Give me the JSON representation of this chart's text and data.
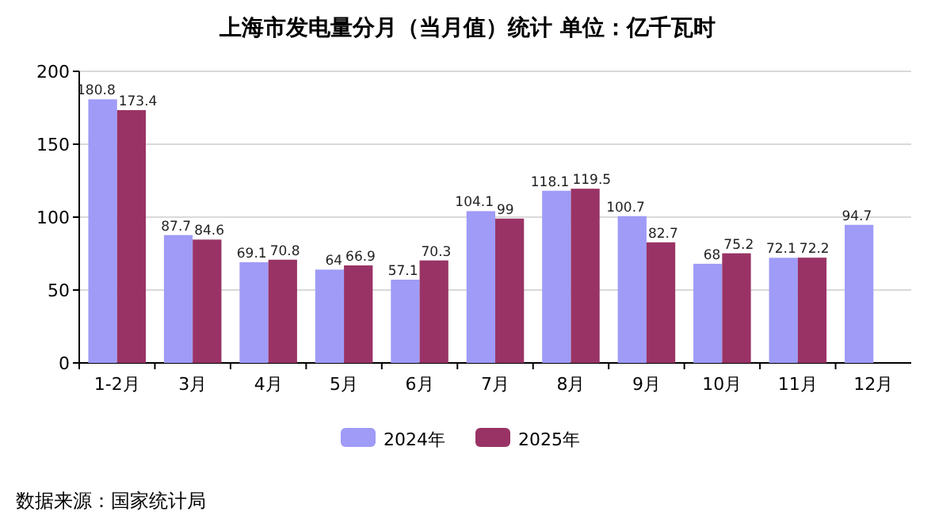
{
  "chart_data": {
    "type": "bar",
    "title": "上海市发电量分月（当月值）统计 单位：亿千瓦时",
    "categories": [
      "1-2月",
      "3月",
      "4月",
      "5月",
      "6月",
      "7月",
      "8月",
      "9月",
      "10月",
      "11月",
      "12月"
    ],
    "series": [
      {
        "name": "2024年",
        "color": "#9f9bf7",
        "values": [
          180.8,
          87.7,
          69.1,
          64,
          57.1,
          104.1,
          118.1,
          100.7,
          68,
          72.1,
          94.7
        ]
      },
      {
        "name": "2025年",
        "color": "#993366",
        "values": [
          173.4,
          84.6,
          70.8,
          66.9,
          70.3,
          99,
          119.5,
          82.7,
          75.2,
          72.2,
          null
        ]
      }
    ],
    "ylim": [
      0,
      200
    ],
    "yticks": [
      0,
      50,
      100,
      150,
      200
    ],
    "grid": "y",
    "legend": "bottom",
    "data_labels": true,
    "annotations": [
      "数据来源：国家统计局"
    ]
  }
}
